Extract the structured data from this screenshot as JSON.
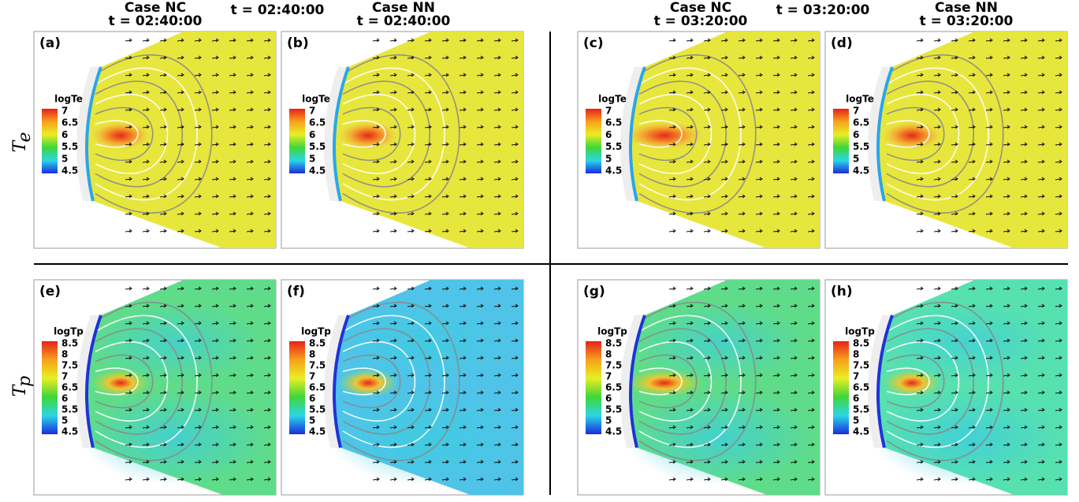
{
  "headers": [
    {
      "case": "Case NC",
      "time": "t = 02:40:00"
    },
    {
      "case": "Case NN",
      "time": "t = 02:40:00"
    },
    {
      "case": "Case NC",
      "time": "t = 03:20:00"
    },
    {
      "case": "Case NN",
      "time": "t = 03:20:00"
    }
  ],
  "center_times": [
    "t = 02:40:00",
    "t = 03:20:00"
  ],
  "rows": [
    {
      "symbol": "T",
      "subscript": "e"
    },
    {
      "symbol": "T",
      "subscript": "p"
    }
  ],
  "panels": [
    {
      "label": "(a)",
      "colorbar_title": "logTe",
      "colorbar_ticks": [
        7,
        6.5,
        6,
        5.5,
        5,
        4.5
      ]
    },
    {
      "label": "(b)",
      "colorbar_title": "logTe",
      "colorbar_ticks": [
        7,
        6.5,
        6,
        5.5,
        5,
        4.5
      ]
    },
    {
      "label": "(c)",
      "colorbar_title": "logTe",
      "colorbar_ticks": [
        7,
        6.5,
        6,
        5.5,
        5,
        4.5
      ]
    },
    {
      "label": "(d)",
      "colorbar_title": "logTe",
      "colorbar_ticks": [
        7,
        6.5,
        6,
        5.5,
        5,
        4.5
      ]
    },
    {
      "label": "(e)",
      "colorbar_title": "logTp",
      "colorbar_ticks": [
        8.5,
        8,
        7.5,
        7,
        6.5,
        6,
        5.5,
        5,
        4.5
      ]
    },
    {
      "label": "(f)",
      "colorbar_title": "logTp",
      "colorbar_ticks": [
        8.5,
        8,
        7.5,
        7,
        6.5,
        6,
        5.5,
        5,
        4.5
      ]
    },
    {
      "label": "(g)",
      "colorbar_title": "logTp",
      "colorbar_ticks": [
        8.5,
        8,
        7.5,
        7,
        6.5,
        6,
        5.5,
        5,
        4.5
      ]
    },
    {
      "label": "(h)",
      "colorbar_title": "logTp",
      "colorbar_ticks": [
        8.5,
        8,
        7.5,
        7,
        6.5,
        6,
        5.5,
        5,
        4.5
      ]
    }
  ]
}
